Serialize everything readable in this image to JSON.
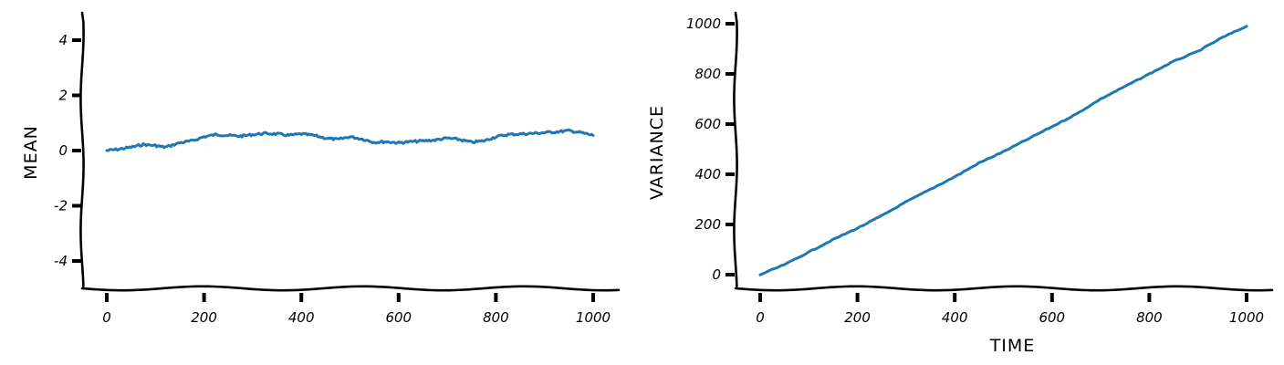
{
  "chart_data": [
    {
      "type": "line",
      "title": "",
      "xlabel": "",
      "ylabel": "MEAN",
      "xlim": [
        0,
        1000
      ],
      "ylim": [
        -5,
        5
      ],
      "xticks": [
        0,
        200,
        400,
        600,
        800,
        1000
      ],
      "yticks": [
        -4,
        -2,
        0,
        2,
        4
      ],
      "xtick_labels": [
        "0",
        "200",
        "400",
        "600",
        "800",
        "1000"
      ],
      "ytick_labels": [
        "-4",
        "-2",
        "0",
        "2",
        "4"
      ],
      "grid": false,
      "line_color": "#1f77b4",
      "series": [
        {
          "x": [
            0,
            25,
            50,
            75,
            100,
            120,
            150,
            175,
            200,
            225,
            250,
            275,
            300,
            325,
            350,
            375,
            400,
            425,
            450,
            475,
            500,
            525,
            550,
            575,
            600,
            625,
            650,
            675,
            700,
            725,
            750,
            775,
            800,
            825,
            850,
            875,
            900,
            925,
            950,
            975,
            1000
          ],
          "y": [
            0.0,
            0.05,
            0.12,
            0.22,
            0.18,
            0.12,
            0.28,
            0.35,
            0.5,
            0.58,
            0.55,
            0.52,
            0.58,
            0.62,
            0.6,
            0.55,
            0.6,
            0.55,
            0.45,
            0.4,
            0.5,
            0.42,
            0.3,
            0.32,
            0.28,
            0.32,
            0.35,
            0.38,
            0.45,
            0.4,
            0.3,
            0.35,
            0.5,
            0.58,
            0.6,
            0.62,
            0.65,
            0.68,
            0.72,
            0.65,
            0.55
          ]
        }
      ]
    },
    {
      "type": "line",
      "title": "",
      "xlabel": "TIME",
      "ylabel": "VARIANCE",
      "xlim": [
        0,
        1000
      ],
      "ylim": [
        0,
        1000
      ],
      "xticks": [
        0,
        200,
        400,
        600,
        800,
        1000
      ],
      "yticks": [
        0,
        200,
        400,
        600,
        800,
        1000
      ],
      "xtick_labels": [
        "0",
        "200",
        "400",
        "600",
        "800",
        "1000"
      ],
      "ytick_labels": [
        "0",
        "200",
        "400",
        "600",
        "800",
        "1000"
      ],
      "grid": false,
      "line_color": "#1f77b4",
      "series": [
        {
          "x": [
            0,
            50,
            100,
            150,
            200,
            250,
            300,
            350,
            400,
            450,
            500,
            550,
            600,
            650,
            700,
            750,
            800,
            850,
            900,
            950,
            1000
          ],
          "y": [
            0,
            40,
            90,
            140,
            185,
            235,
            290,
            340,
            390,
            445,
            490,
            540,
            590,
            640,
            700,
            750,
            800,
            850,
            890,
            945,
            990
          ]
        }
      ]
    }
  ]
}
